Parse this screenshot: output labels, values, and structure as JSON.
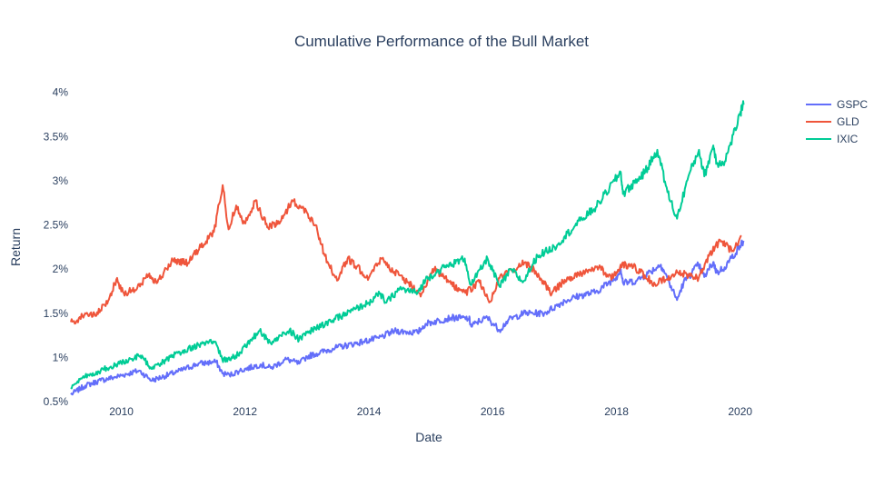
{
  "chart_data": {
    "type": "line",
    "title": "Cumulative Performance of the Bull Market",
    "xlabel": "Date",
    "ylabel": "Return",
    "xlim": [
      "2009-03-09",
      "2021-01-01"
    ],
    "ylim": [
      0.5,
      4.1
    ],
    "x_ticks": [
      "2010",
      "2012",
      "2014",
      "2016",
      "2018",
      "2020"
    ],
    "y_ticks": [
      "0.5%",
      "1%",
      "1.5%",
      "2%",
      "2.5%",
      "3%",
      "3.5%",
      "4%"
    ],
    "legend_position": "top-right",
    "grid": false,
    "series": [
      {
        "name": "GSPC",
        "color": "#636efa",
        "points": [
          [
            "2009-03-09",
            0.58
          ],
          [
            "2009-06-01",
            0.68
          ],
          [
            "2009-09-01",
            0.74
          ],
          [
            "2009-12-01",
            0.78
          ],
          [
            "2010-04-15",
            0.85
          ],
          [
            "2010-07-01",
            0.74
          ],
          [
            "2010-12-01",
            0.84
          ],
          [
            "2011-04-01",
            0.93
          ],
          [
            "2011-07-15",
            0.95
          ],
          [
            "2011-08-20",
            0.82
          ],
          [
            "2011-10-01",
            0.8
          ],
          [
            "2011-12-01",
            0.85
          ],
          [
            "2012-04-01",
            0.92
          ],
          [
            "2012-06-01",
            0.88
          ],
          [
            "2012-09-01",
            0.98
          ],
          [
            "2012-11-15",
            0.93
          ],
          [
            "2013-01-01",
            1.01
          ],
          [
            "2013-06-01",
            1.1
          ],
          [
            "2013-12-01",
            1.18
          ],
          [
            "2014-03-01",
            1.22
          ],
          [
            "2014-06-01",
            1.3
          ],
          [
            "2014-10-15",
            1.28
          ],
          [
            "2014-12-01",
            1.38
          ],
          [
            "2015-05-01",
            1.45
          ],
          [
            "2015-08-15",
            1.44
          ],
          [
            "2015-08-28",
            1.35
          ],
          [
            "2015-10-01",
            1.4
          ],
          [
            "2015-12-01",
            1.45
          ],
          [
            "2016-02-10",
            1.31
          ],
          [
            "2016-04-01",
            1.42
          ],
          [
            "2016-07-01",
            1.5
          ],
          [
            "2016-11-01",
            1.5
          ],
          [
            "2017-03-01",
            1.64
          ],
          [
            "2017-06-01",
            1.7
          ],
          [
            "2017-09-01",
            1.74
          ],
          [
            "2017-12-31",
            1.91
          ],
          [
            "2018-01-26",
            2.0
          ],
          [
            "2018-02-09",
            1.84
          ],
          [
            "2018-05-01",
            1.87
          ],
          [
            "2018-09-20",
            2.05
          ],
          [
            "2018-10-15",
            1.95
          ],
          [
            "2018-12-24",
            1.65
          ],
          [
            "2019-02-01",
            1.85
          ],
          [
            "2019-04-30",
            2.05
          ],
          [
            "2019-06-03",
            1.91
          ],
          [
            "2019-07-26",
            2.08
          ],
          [
            "2019-08-15",
            1.96
          ],
          [
            "2019-10-01",
            2.02
          ],
          [
            "2019-12-31",
            2.26
          ],
          [
            "2020-01-21",
            2.32
          ]
        ]
      },
      {
        "name": "GLD",
        "color": "#ef553b",
        "points": [
          [
            "2009-03-09",
            1.4
          ],
          [
            "2009-04-15",
            1.42
          ],
          [
            "2009-06-01",
            1.5
          ],
          [
            "2009-08-01",
            1.47
          ],
          [
            "2009-10-15",
            1.64
          ],
          [
            "2009-12-02",
            1.88
          ],
          [
            "2010-01-15",
            1.73
          ],
          [
            "2010-04-01",
            1.77
          ],
          [
            "2010-06-15",
            1.95
          ],
          [
            "2010-07-28",
            1.84
          ],
          [
            "2010-11-01",
            2.1
          ],
          [
            "2011-01-28",
            2.07
          ],
          [
            "2011-04-15",
            2.25
          ],
          [
            "2011-07-01",
            2.42
          ],
          [
            "2011-08-22",
            2.95
          ],
          [
            "2011-09-26",
            2.45
          ],
          [
            "2011-11-10",
            2.72
          ],
          [
            "2011-12-29",
            2.52
          ],
          [
            "2012-02-28",
            2.77
          ],
          [
            "2012-05-16",
            2.47
          ],
          [
            "2012-08-01",
            2.55
          ],
          [
            "2012-10-04",
            2.78
          ],
          [
            "2012-12-31",
            2.64
          ],
          [
            "2013-02-20",
            2.5
          ],
          [
            "2013-04-16",
            2.15
          ],
          [
            "2013-06-27",
            1.87
          ],
          [
            "2013-08-28",
            2.12
          ],
          [
            "2013-12-31",
            1.9
          ],
          [
            "2014-03-14",
            2.12
          ],
          [
            "2014-06-01",
            1.97
          ],
          [
            "2014-11-07",
            1.72
          ],
          [
            "2015-01-22",
            2.0
          ],
          [
            "2015-05-01",
            1.83
          ],
          [
            "2015-07-24",
            1.73
          ],
          [
            "2015-10-15",
            1.85
          ],
          [
            "2015-12-17",
            1.63
          ],
          [
            "2016-02-11",
            1.9
          ],
          [
            "2016-07-06",
            2.07
          ],
          [
            "2016-09-01",
            2.0
          ],
          [
            "2016-12-15",
            1.72
          ],
          [
            "2017-03-01",
            1.88
          ],
          [
            "2017-06-06",
            1.95
          ],
          [
            "2017-09-08",
            2.03
          ],
          [
            "2017-12-12",
            1.9
          ],
          [
            "2018-01-25",
            2.05
          ],
          [
            "2018-04-11",
            2.03
          ],
          [
            "2018-08-16",
            1.83
          ],
          [
            "2018-12-31",
            1.96
          ],
          [
            "2019-05-01",
            1.9
          ],
          [
            "2019-07-01",
            2.15
          ],
          [
            "2019-09-04",
            2.33
          ],
          [
            "2019-11-12",
            2.2
          ],
          [
            "2020-01-08",
            2.38
          ]
        ]
      },
      {
        "name": "IXIC",
        "color": "#00cc96",
        "points": [
          [
            "2009-03-09",
            0.66
          ],
          [
            "2009-06-01",
            0.78
          ],
          [
            "2009-09-01",
            0.85
          ],
          [
            "2009-12-01",
            0.92
          ],
          [
            "2010-04-23",
            1.02
          ],
          [
            "2010-07-02",
            0.87
          ],
          [
            "2010-12-01",
            1.05
          ],
          [
            "2011-04-29",
            1.16
          ],
          [
            "2011-07-07",
            1.18
          ],
          [
            "2011-08-19",
            0.98
          ],
          [
            "2011-10-03",
            0.97
          ],
          [
            "2011-12-01",
            1.06
          ],
          [
            "2012-03-27",
            1.3
          ],
          [
            "2012-06-01",
            1.16
          ],
          [
            "2012-09-19",
            1.31
          ],
          [
            "2012-11-15",
            1.2
          ],
          [
            "2013-01-01",
            1.28
          ],
          [
            "2013-06-01",
            1.42
          ],
          [
            "2013-12-31",
            1.62
          ],
          [
            "2014-03-05",
            1.72
          ],
          [
            "2014-04-14",
            1.62
          ],
          [
            "2014-07-01",
            1.78
          ],
          [
            "2014-10-15",
            1.73
          ],
          [
            "2014-12-01",
            1.88
          ],
          [
            "2015-03-02",
            2.0
          ],
          [
            "2015-07-20",
            2.12
          ],
          [
            "2015-08-25",
            1.82
          ],
          [
            "2015-12-02",
            2.12
          ],
          [
            "2016-02-11",
            1.8
          ],
          [
            "2016-04-20",
            2.0
          ],
          [
            "2016-06-27",
            1.85
          ],
          [
            "2016-09-22",
            2.15
          ],
          [
            "2017-01-01",
            2.25
          ],
          [
            "2017-06-01",
            2.55
          ],
          [
            "2017-09-01",
            2.7
          ],
          [
            "2018-01-26",
            3.1
          ],
          [
            "2018-02-08",
            2.85
          ],
          [
            "2018-06-20",
            3.1
          ],
          [
            "2018-08-30",
            3.35
          ],
          [
            "2018-10-29",
            2.87
          ],
          [
            "2018-12-24",
            2.57
          ],
          [
            "2019-03-01",
            3.05
          ],
          [
            "2019-05-03",
            3.35
          ],
          [
            "2019-06-03",
            3.05
          ],
          [
            "2019-07-26",
            3.4
          ],
          [
            "2019-08-15",
            3.2
          ],
          [
            "2019-10-02",
            3.22
          ],
          [
            "2019-12-31",
            3.75
          ],
          [
            "2020-01-21",
            3.86
          ]
        ]
      }
    ]
  }
}
